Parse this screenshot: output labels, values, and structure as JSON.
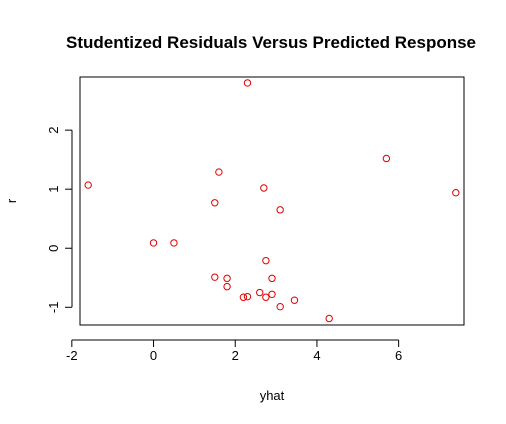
{
  "chart_data": {
    "type": "scatter",
    "title": "Studentized Residuals Versus Predicted Response",
    "xlabel": "yhat",
    "ylabel": "r",
    "xlim": [
      -1.8,
      7.6
    ],
    "ylim": [
      -1.3,
      2.9
    ],
    "x_ticks": [
      -2,
      0,
      2,
      4,
      6
    ],
    "x_tick_labels": [
      "-2",
      "0",
      "2",
      "4",
      "6"
    ],
    "y_ticks": [
      -1,
      0,
      1,
      2
    ],
    "y_tick_labels": [
      "-1",
      "0",
      "1",
      "2"
    ],
    "grid": false,
    "legend": "none",
    "point_color": "#e00000",
    "points": [
      {
        "x": -1.6,
        "y": 1.07
      },
      {
        "x": 0.0,
        "y": 0.09
      },
      {
        "x": 0.5,
        "y": 0.09
      },
      {
        "x": 1.5,
        "y": 0.77
      },
      {
        "x": 1.6,
        "y": 1.29
      },
      {
        "x": 1.5,
        "y": -0.49
      },
      {
        "x": 1.8,
        "y": -0.51
      },
      {
        "x": 1.8,
        "y": -0.65
      },
      {
        "x": 2.2,
        "y": -0.83
      },
      {
        "x": 2.3,
        "y": -0.82
      },
      {
        "x": 2.3,
        "y": 2.8
      },
      {
        "x": 2.6,
        "y": -0.75
      },
      {
        "x": 2.7,
        "y": 1.02
      },
      {
        "x": 2.75,
        "y": -0.21
      },
      {
        "x": 2.75,
        "y": -0.83
      },
      {
        "x": 2.9,
        "y": -0.78
      },
      {
        "x": 2.9,
        "y": -0.51
      },
      {
        "x": 3.1,
        "y": 0.65
      },
      {
        "x": 3.1,
        "y": -0.99
      },
      {
        "x": 3.45,
        "y": -0.88
      },
      {
        "x": 4.3,
        "y": -1.19
      },
      {
        "x": 5.7,
        "y": 1.52
      },
      {
        "x": 7.4,
        "y": 0.94
      }
    ]
  }
}
